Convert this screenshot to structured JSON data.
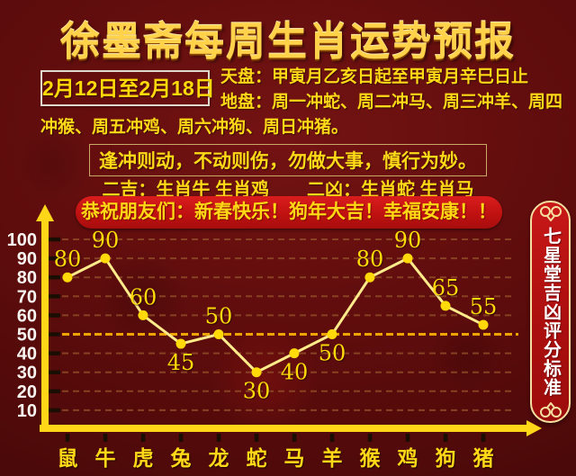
{
  "title": "徐墨斋每周生肖运势预报",
  "date_range": "2月12日至2月18日",
  "tianpan": "天盘：甲寅月乙亥日起至甲寅月辛巳日止",
  "dipan": "地盘：周一冲蛇、周二冲马、周三冲羊、周四冲猴、周五冲鸡、周六冲狗、周日冲猪。",
  "advice": "逢冲则动，不动则伤，勿做大事，慎行为妙。",
  "lucky": "二吉：生肖牛 生肖鸡",
  "unlucky": "二凶：生肖蛇 生肖马",
  "greeting": "恭祝朋友们：新春快乐！狗年大吉！幸福安康！！",
  "side_banner": "七星堂吉凶评分标准",
  "colors": {
    "background": "#5e0c0c",
    "accent_yellow": "#ffd817",
    "banner_red": "#c01111",
    "axis_yellow": "#ffd718",
    "series_line": "#ffeb8a",
    "point_fill": "#ffd908",
    "grid_dash": "#8f4c28",
    "reference_line": "#eda400",
    "ytick_label": "#f7f3ef",
    "tick_mark": "#1a0d03"
  },
  "chart_data": {
    "type": "line",
    "categories": [
      "鼠",
      "牛",
      "虎",
      "兔",
      "龙",
      "蛇",
      "马",
      "羊",
      "猴",
      "鸡",
      "狗",
      "猪"
    ],
    "values": [
      80,
      90,
      60,
      45,
      50,
      30,
      40,
      50,
      80,
      90,
      65,
      55
    ],
    "label_positions": [
      "above",
      "above",
      "above",
      "below",
      "above",
      "below",
      "below",
      "below",
      "above",
      "above",
      "above",
      "above"
    ],
    "title": "",
    "xlabel": "",
    "ylabel": "",
    "ylim": [
      0,
      100
    ],
    "yticks": [
      10,
      20,
      30,
      40,
      50,
      60,
      70,
      80,
      90,
      100
    ],
    "reference_line": 50,
    "grid": "dashed-horizontal",
    "legend": "none"
  }
}
